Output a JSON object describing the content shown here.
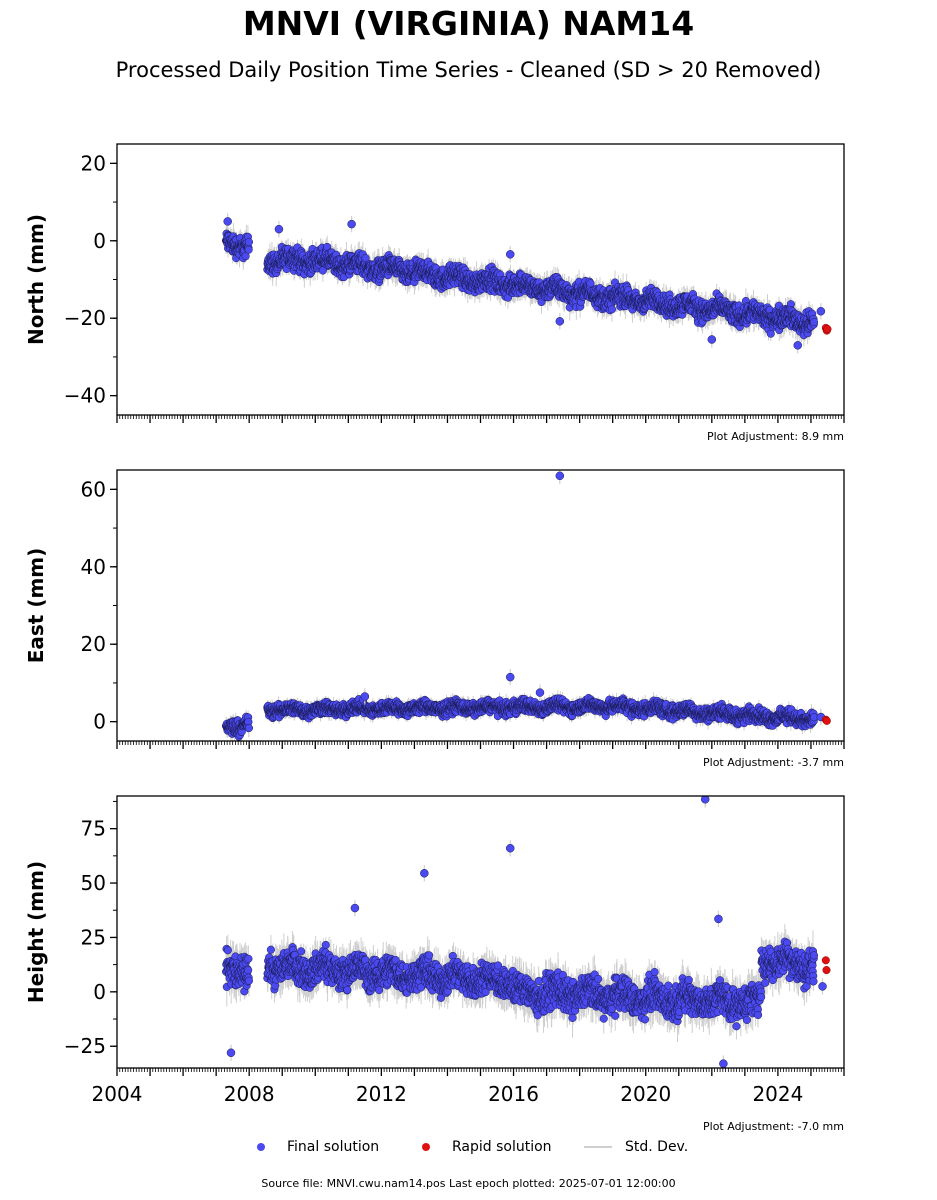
{
  "title": "MNVI (VIRGINIA) NAM14",
  "subtitle": "Processed Daily Position Time Series - Cleaned (SD > 20 Removed)",
  "source_line": "Source file: MNVI.cwu.nam14.pos  Last epoch plotted: 2025-07-01 12:00:00",
  "legend": {
    "final": "Final solution",
    "rapid": "Rapid solution",
    "std": "Std. Dev."
  },
  "colors": {
    "final": "#4a4af0",
    "final_edge": "#1a1a50",
    "rapid": "#e01010",
    "std": "#cfcfcf"
  },
  "chart_data": [
    {
      "type": "scatter",
      "ylabel": "North (mm)",
      "adjustment": "Plot Adjustment: 8.9 mm",
      "xlim": [
        2004,
        2026
      ],
      "ylim": [
        -45,
        25
      ],
      "yticks": [
        20,
        0,
        -20,
        -40
      ],
      "ytick_labels": [
        "20",
        "0",
        "−20",
        "−40"
      ],
      "x_tick_labels_shown": false,
      "segments": [
        {
          "x0": 2007.3,
          "x1": 2008.0,
          "y0": -1,
          "y1": -1,
          "spread": 2.5
        },
        {
          "x0": 2008.55,
          "x1": 2010.0,
          "y0": -5,
          "y1": -5,
          "spread": 2.5
        },
        {
          "x0": 2010.0,
          "x1": 2025.1,
          "y0": -5,
          "y1": -21,
          "spread": 2.5
        }
      ],
      "outliers": [
        {
          "x": 2007.35,
          "y": 5
        },
        {
          "x": 2008.9,
          "y": 3
        },
        {
          "x": 2011.1,
          "y": 4.3
        },
        {
          "x": 2015.9,
          "y": -3.5
        },
        {
          "x": 2017.4,
          "y": -20.8
        },
        {
          "x": 2022.0,
          "y": -25.5
        },
        {
          "x": 2024.6,
          "y": -27
        },
        {
          "x": 2025.3,
          "y": -18.2
        }
      ],
      "rapid": [
        {
          "x": 2025.45,
          "y": -22.5
        },
        {
          "x": 2025.48,
          "y": -23.2
        },
        {
          "x": 2025.5,
          "y": -22.8
        }
      ]
    },
    {
      "type": "scatter",
      "ylabel": "East (mm)",
      "adjustment": "Plot Adjustment: -3.7 mm",
      "xlim": [
        2004,
        2026
      ],
      "ylim": [
        -5,
        65
      ],
      "yticks": [
        60,
        40,
        20,
        0
      ],
      "ytick_labels": [
        "60",
        "40",
        "20",
        "0"
      ],
      "x_tick_labels_shown": false,
      "segments": [
        {
          "x0": 2007.3,
          "x1": 2008.0,
          "y0": -2,
          "y1": 0,
          "spread": 1.8
        },
        {
          "x0": 2008.55,
          "x1": 2019.0,
          "y0": 3,
          "y1": 4,
          "spread": 1.5
        },
        {
          "x0": 2019.0,
          "x1": 2025.1,
          "y0": 4,
          "y1": 0.5,
          "spread": 1.6
        }
      ],
      "outliers": [
        {
          "x": 2017.4,
          "y": 63.5
        },
        {
          "x": 2015.9,
          "y": 11.5
        },
        {
          "x": 2011.5,
          "y": 6.5
        },
        {
          "x": 2016.8,
          "y": 7.5
        },
        {
          "x": 2025.3,
          "y": 1.2
        }
      ],
      "rapid": [
        {
          "x": 2025.45,
          "y": 0.5
        },
        {
          "x": 2025.48,
          "y": 0.2
        }
      ]
    },
    {
      "type": "scatter",
      "ylabel": "Height (mm)",
      "adjustment": "Plot Adjustment: -7.0 mm",
      "xlim": [
        2004,
        2026
      ],
      "ylim": [
        -35,
        90
      ],
      "yticks": [
        75,
        50,
        25,
        0,
        -25
      ],
      "ytick_labels": [
        "75",
        "50",
        "25",
        "0",
        "−25"
      ],
      "x_tick_labels_shown": true,
      "xticks": [
        2004,
        2008,
        2012,
        2016,
        2020,
        2024
      ],
      "xtick_labels": [
        "2004",
        "2008",
        "2012",
        "2016",
        "2020",
        "2024"
      ],
      "segments": [
        {
          "x0": 2007.3,
          "x1": 2008.0,
          "y0": 10,
          "y1": 10,
          "spread": 7
        },
        {
          "x0": 2008.55,
          "x1": 2016.0,
          "y0": 12,
          "y1": 5,
          "spread": 6.5
        },
        {
          "x0": 2016.0,
          "x1": 2023.5,
          "y0": 0,
          "y1": -5,
          "spread": 7
        },
        {
          "x0": 2023.5,
          "x1": 2025.1,
          "y0": 15,
          "y1": 12,
          "spread": 7
        }
      ],
      "outliers": [
        {
          "x": 2007.45,
          "y": -28
        },
        {
          "x": 2011.2,
          "y": 38.5
        },
        {
          "x": 2013.3,
          "y": 54.5
        },
        {
          "x": 2015.9,
          "y": 66
        },
        {
          "x": 2021.8,
          "y": 88.5
        },
        {
          "x": 2022.2,
          "y": 33.5
        },
        {
          "x": 2022.35,
          "y": -33
        },
        {
          "x": 2025.35,
          "y": 2.5
        }
      ],
      "rapid": [
        {
          "x": 2025.45,
          "y": 14.5
        },
        {
          "x": 2025.47,
          "y": 10
        }
      ]
    }
  ]
}
